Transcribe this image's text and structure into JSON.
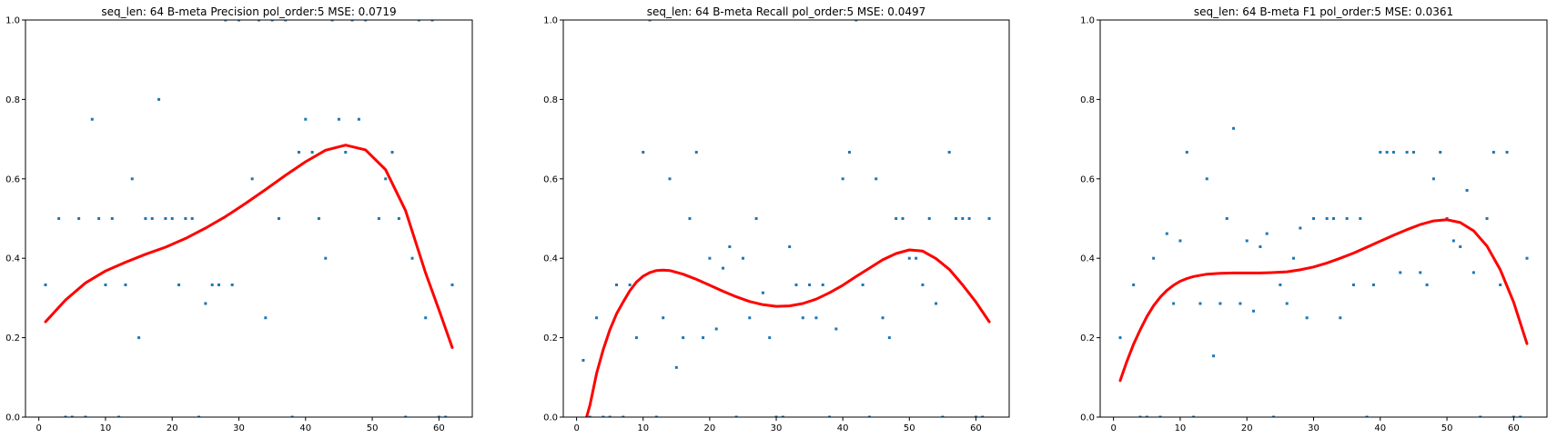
{
  "colors": {
    "points": "#1f77b4",
    "fit": "#ff0000"
  },
  "chart_data": [
    {
      "type": "scatter",
      "title": "seq_len: 64    B-meta   Precision   pol_order:5   MSE: 0.0719",
      "xlim": [
        -2,
        65
      ],
      "ylim": [
        0,
        1
      ],
      "xticks": [
        "0",
        "10",
        "20",
        "30",
        "40",
        "50",
        "60"
      ],
      "yticks": [
        "0.0",
        "0.2",
        "0.4",
        "0.6",
        "0.8",
        "1.0"
      ],
      "grid": false,
      "points": {
        "x": [
          1,
          3,
          4,
          5,
          6,
          7,
          8,
          9,
          10,
          11,
          12,
          13,
          14,
          15,
          16,
          17,
          18,
          19,
          20,
          21,
          22,
          23,
          24,
          25,
          26,
          27,
          28,
          29,
          30,
          32,
          33,
          34,
          35,
          36,
          37,
          38,
          39,
          40,
          41,
          42,
          43,
          44,
          45,
          46,
          47,
          48,
          49,
          51,
          52,
          53,
          54,
          55,
          56,
          57,
          58,
          59,
          60,
          61,
          62
        ],
        "y": [
          0.333,
          0.5,
          0,
          0,
          0.5,
          0,
          0.75,
          0.5,
          0.333,
          0.5,
          0,
          0.333,
          0.6,
          0.2,
          0.5,
          0.5,
          0.8,
          0.5,
          0.5,
          0.333,
          0.5,
          0.5,
          0,
          0.286,
          0.333,
          0.333,
          1,
          0.333,
          1,
          0.6,
          1,
          0.25,
          1,
          0.5,
          1,
          0,
          0.667,
          0.75,
          0.667,
          0.5,
          0.4,
          1,
          0.75,
          0.667,
          1,
          0.75,
          1,
          0.5,
          0.6,
          0.667,
          0.5,
          0,
          0.4,
          1,
          0.25,
          1,
          0,
          0,
          0.333
        ]
      },
      "fit": {
        "x": [
          1,
          4,
          7,
          10,
          13,
          16,
          19,
          22,
          25,
          28,
          31,
          34,
          37,
          40,
          43,
          46,
          49,
          52,
          55,
          58,
          60,
          62
        ],
        "y": [
          0.24,
          0.295,
          0.338,
          0.368,
          0.39,
          0.41,
          0.428,
          0.45,
          0.476,
          0.505,
          0.538,
          0.573,
          0.609,
          0.643,
          0.672,
          0.685,
          0.673,
          0.623,
          0.52,
          0.363,
          0.27,
          0.175
        ]
      }
    },
    {
      "type": "scatter",
      "title": "seq_len: 64    B-meta   Recall   pol_order:5   MSE: 0.0497",
      "xlim": [
        -2,
        65
      ],
      "ylim": [
        0,
        1
      ],
      "xticks": [
        "0",
        "10",
        "20",
        "30",
        "40",
        "50",
        "60"
      ],
      "yticks": [
        "0.0",
        "0.2",
        "0.4",
        "0.6",
        "0.8",
        "1.0"
      ],
      "grid": false,
      "points": {
        "x": [
          1,
          2,
          3,
          4,
          5,
          6,
          7,
          8,
          9,
          10,
          11,
          12,
          13,
          14,
          15,
          16,
          17,
          18,
          19,
          20,
          21,
          22,
          23,
          24,
          25,
          26,
          27,
          28,
          29,
          30,
          31,
          32,
          33,
          34,
          35,
          36,
          37,
          38,
          39,
          40,
          41,
          42,
          43,
          44,
          45,
          46,
          47,
          48,
          49,
          50,
          51,
          52,
          53,
          54,
          55,
          56,
          57,
          58,
          59,
          60,
          61,
          62
        ],
        "y": [
          0.143,
          0,
          0.25,
          0,
          0,
          0.333,
          0,
          0.333,
          0.2,
          0.667,
          1,
          0,
          0.25,
          0.6,
          0.125,
          0.2,
          0.5,
          0.667,
          0.2,
          0.4,
          0.222,
          0.375,
          0.429,
          0,
          0.4,
          0.25,
          0.5,
          0.313,
          0.2,
          0,
          0,
          0.429,
          0.333,
          0.25,
          0.333,
          0.25,
          0.333,
          0,
          0.222,
          0.6,
          0.667,
          1,
          0.333,
          0,
          0.6,
          0.25,
          0.2,
          0.5,
          0.5,
          0.4,
          0.4,
          0.333,
          0.5,
          0.286,
          0,
          0.667,
          0.5,
          0.5,
          0.5,
          0,
          0,
          0.5
        ]
      },
      "fit": {
        "x": [
          1.5,
          2,
          3,
          4,
          5,
          6,
          7,
          8,
          9,
          10,
          11,
          12,
          13,
          14,
          16,
          18,
          20,
          22,
          24,
          26,
          28,
          30,
          32,
          34,
          36,
          38,
          40,
          42,
          44,
          46,
          48,
          50,
          52,
          54,
          56,
          58,
          60,
          62
        ],
        "y": [
          0,
          0.03,
          0.11,
          0.17,
          0.22,
          0.26,
          0.29,
          0.318,
          0.34,
          0.355,
          0.364,
          0.369,
          0.37,
          0.369,
          0.36,
          0.347,
          0.332,
          0.317,
          0.303,
          0.291,
          0.283,
          0.279,
          0.28,
          0.286,
          0.297,
          0.313,
          0.332,
          0.354,
          0.375,
          0.396,
          0.412,
          0.421,
          0.418,
          0.399,
          0.372,
          0.333,
          0.29,
          0.24
        ]
      }
    },
    {
      "type": "scatter",
      "title": "seq_len: 64    B-meta   F1   pol_order:5   MSE: 0.0361",
      "xlim": [
        -2,
        65
      ],
      "ylim": [
        0,
        1
      ],
      "xticks": [
        "0",
        "10",
        "20",
        "30",
        "40",
        "50",
        "60"
      ],
      "yticks": [
        "0.0",
        "0.2",
        "0.4",
        "0.6",
        "0.8",
        "1.0"
      ],
      "grid": false,
      "points": {
        "x": [
          1,
          3,
          4,
          5,
          6,
          7,
          8,
          9,
          10,
          11,
          12,
          13,
          14,
          15,
          16,
          17,
          18,
          19,
          20,
          21,
          22,
          23,
          24,
          25,
          26,
          27,
          28,
          29,
          30,
          32,
          33,
          34,
          35,
          36,
          37,
          38,
          39,
          40,
          41,
          42,
          43,
          44,
          45,
          46,
          47,
          48,
          49,
          50,
          51,
          52,
          53,
          54,
          55,
          56,
          57,
          58,
          59,
          60,
          61,
          62
        ],
        "y": [
          0.2,
          0.333,
          0,
          0,
          0.4,
          0,
          0.462,
          0.286,
          0.444,
          0.667,
          0,
          0.286,
          0.6,
          0.154,
          0.286,
          0.5,
          0.727,
          0.286,
          0.444,
          0.267,
          0.429,
          0.462,
          0,
          0.333,
          0.286,
          0.4,
          0.476,
          0.25,
          0.5,
          0.5,
          0.5,
          0.25,
          0.5,
          0.333,
          0.5,
          0,
          0.333,
          0.667,
          0.667,
          0.667,
          0.364,
          0.667,
          0.667,
          0.364,
          0.333,
          0.6,
          0.667,
          0.5,
          0.444,
          0.429,
          0.571,
          0.364,
          0,
          0.5,
          0.667,
          0.333,
          0.667,
          0,
          0,
          0.4
        ]
      },
      "fit": {
        "x": [
          1,
          2,
          3,
          4,
          5,
          6,
          7,
          8,
          9,
          10,
          11,
          12,
          14,
          16,
          18,
          20,
          22,
          24,
          26,
          28,
          30,
          32,
          34,
          36,
          38,
          40,
          42,
          44,
          46,
          48,
          50,
          52,
          54,
          56,
          58,
          60,
          62
        ],
        "y": [
          0.092,
          0.14,
          0.183,
          0.22,
          0.253,
          0.28,
          0.302,
          0.319,
          0.332,
          0.342,
          0.349,
          0.354,
          0.36,
          0.362,
          0.363,
          0.363,
          0.363,
          0.364,
          0.366,
          0.371,
          0.378,
          0.388,
          0.4,
          0.413,
          0.428,
          0.443,
          0.458,
          0.472,
          0.485,
          0.494,
          0.497,
          0.49,
          0.469,
          0.431,
          0.371,
          0.289,
          0.185
        ]
      }
    }
  ]
}
